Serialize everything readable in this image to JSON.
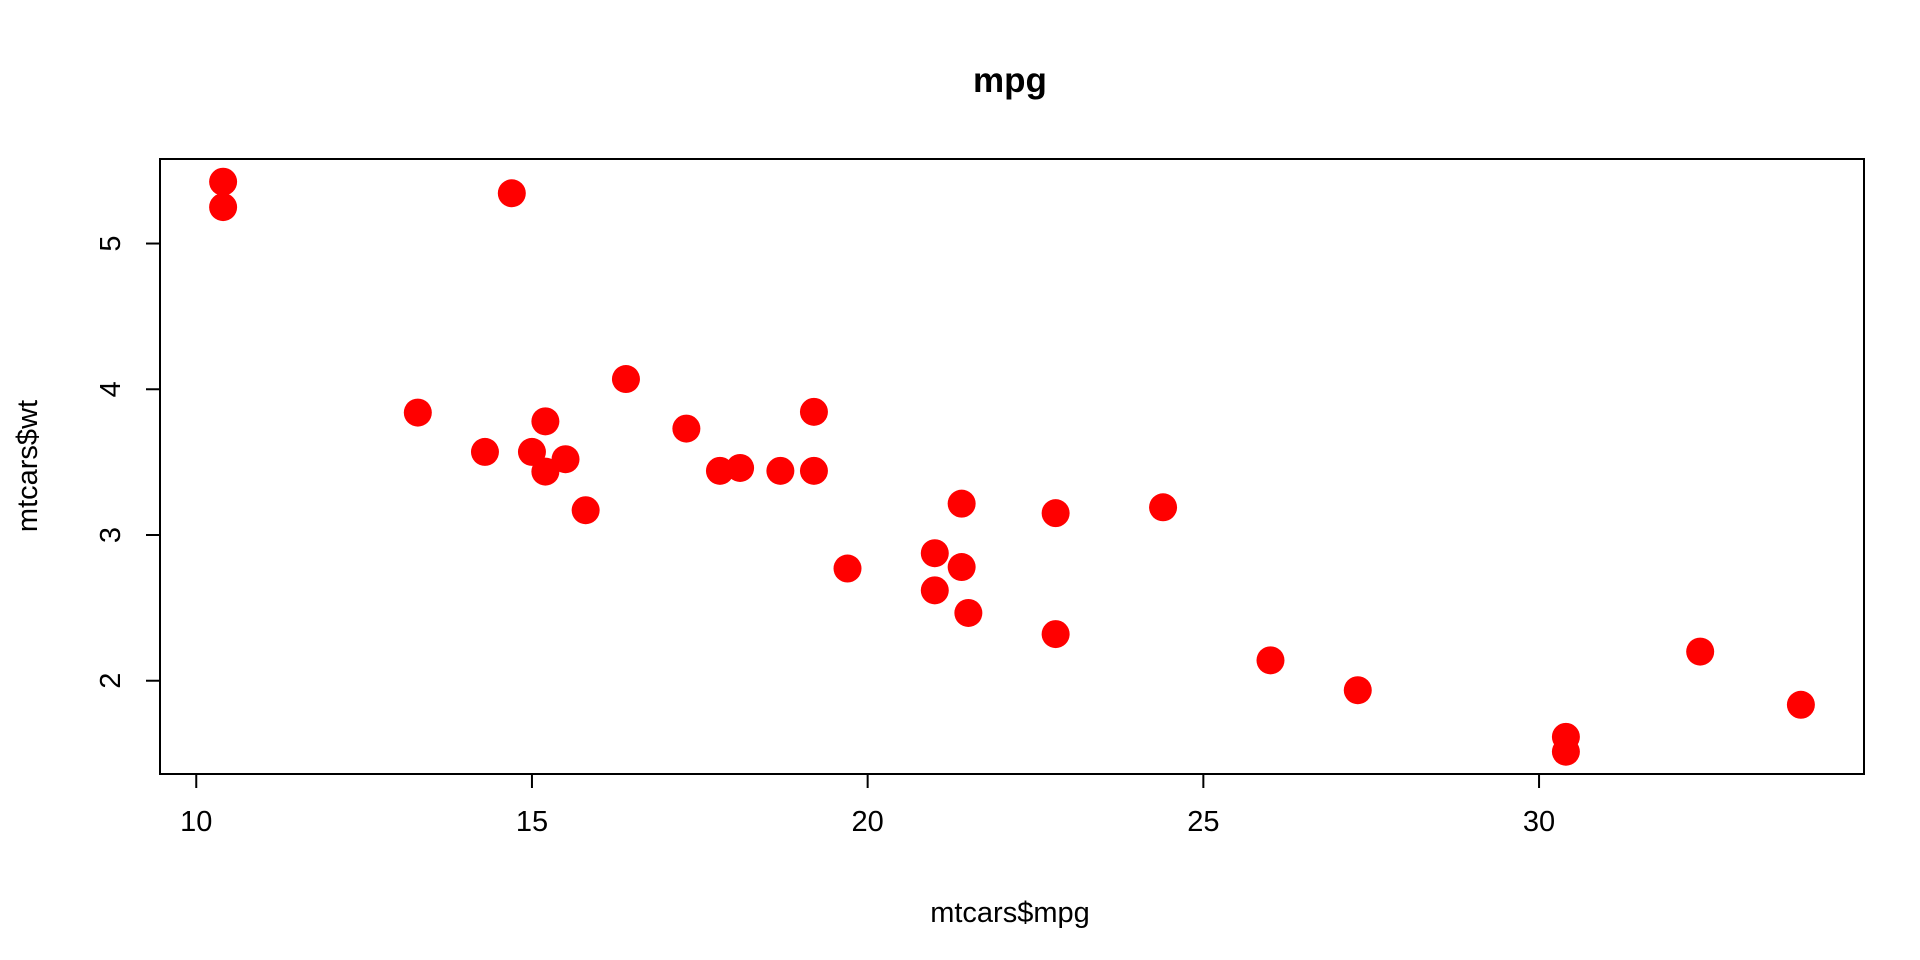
{
  "chart_data": {
    "type": "scatter",
    "title": "mpg",
    "xlabel": "mtcars$mpg",
    "ylabel": "mtcars$wt",
    "xlim": [
      9.46,
      34.84
    ],
    "ylim": [
      1.36,
      5.58
    ],
    "xticks": [
      10,
      15,
      20,
      25,
      30
    ],
    "yticks": [
      2,
      3,
      4,
      5
    ],
    "xtick_labels": [
      "10",
      "15",
      "20",
      "25",
      "30"
    ],
    "ytick_labels": [
      "2",
      "3",
      "4",
      "5"
    ],
    "grid": false,
    "marker_color": "#ff0000",
    "series": [
      {
        "x": [
          21.0,
          21.0,
          22.8,
          21.4,
          18.7,
          18.1,
          14.3,
          24.4,
          22.8,
          19.2,
          17.8,
          16.4,
          17.3,
          15.2,
          10.4,
          10.4,
          14.7,
          32.4,
          30.4,
          33.9,
          21.5,
          15.5,
          15.2,
          13.3,
          19.2,
          27.3,
          26.0,
          30.4,
          15.8,
          19.7,
          15.0,
          21.4
        ],
        "y": [
          2.62,
          2.875,
          2.32,
          3.215,
          3.44,
          3.46,
          3.57,
          3.19,
          3.15,
          3.44,
          3.44,
          4.07,
          3.73,
          3.78,
          5.25,
          5.424,
          5.345,
          2.2,
          1.615,
          1.835,
          2.465,
          3.52,
          3.435,
          3.84,
          3.845,
          1.935,
          2.14,
          1.513,
          3.17,
          2.77,
          3.57,
          2.78
        ]
      }
    ]
  }
}
